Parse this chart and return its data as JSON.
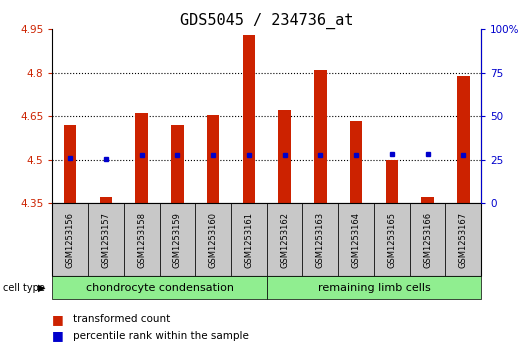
{
  "title": "GDS5045 / 234736_at",
  "samples": [
    "GSM1253156",
    "GSM1253157",
    "GSM1253158",
    "GSM1253159",
    "GSM1253160",
    "GSM1253161",
    "GSM1253162",
    "GSM1253163",
    "GSM1253164",
    "GSM1253165",
    "GSM1253166",
    "GSM1253167"
  ],
  "bar_values": [
    4.62,
    4.37,
    4.66,
    4.62,
    4.655,
    4.93,
    4.67,
    4.81,
    4.635,
    4.5,
    4.37,
    4.79
  ],
  "percentile_values": [
    4.505,
    4.503,
    4.515,
    4.515,
    4.515,
    4.515,
    4.515,
    4.515,
    4.515,
    4.518,
    4.518,
    4.515
  ],
  "bar_bottom": 4.35,
  "ylim_left": [
    4.35,
    4.95
  ],
  "ylim_right": [
    0,
    100
  ],
  "yticks_left": [
    4.35,
    4.5,
    4.65,
    4.8,
    4.95
  ],
  "yticks_right": [
    0,
    25,
    50,
    75,
    100
  ],
  "ytick_labels_left": [
    "4.35",
    "4.5",
    "4.65",
    "4.8",
    "4.95"
  ],
  "ytick_labels_right": [
    "0",
    "25",
    "50",
    "75",
    "100%"
  ],
  "bar_color": "#cc2200",
  "dot_color": "#0000cc",
  "gray_color": "#c8c8c8",
  "green_color": "#90ee90",
  "group1_label": "chondrocyte condensation",
  "group2_label": "remaining limb cells",
  "cell_type_label": "cell type",
  "legend1": "transformed count",
  "legend2": "percentile rank within the sample",
  "title_fontsize": 11,
  "tick_fontsize": 7.5,
  "sample_fontsize": 6,
  "group_fontsize": 8,
  "legend_fontsize": 7.5
}
